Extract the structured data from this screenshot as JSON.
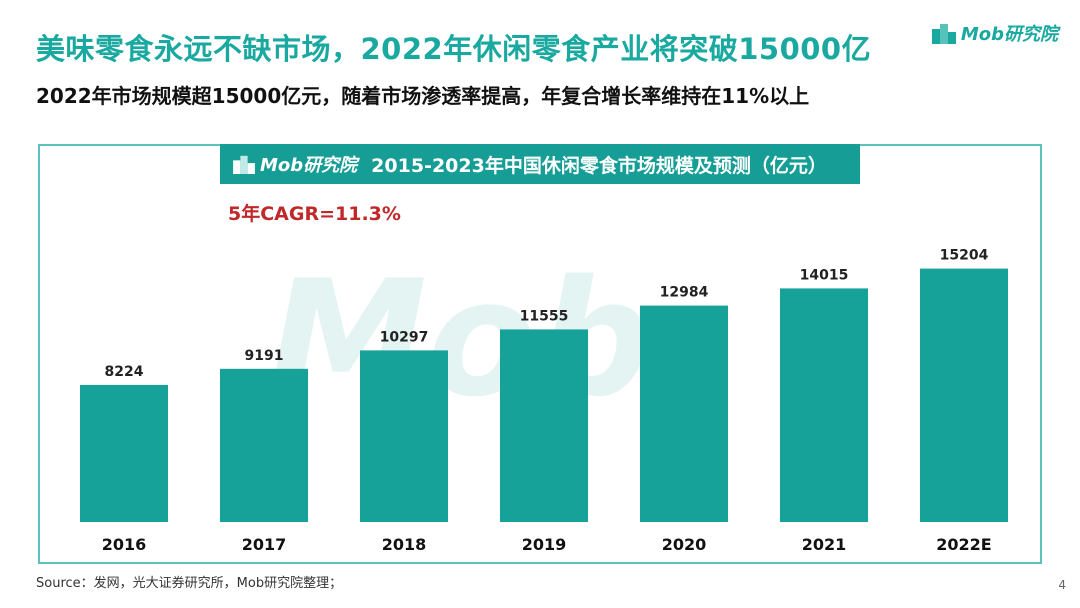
{
  "slide": {
    "headline": "美味零食永远不缺市场，2022年休闲零食产业将突破15000亿",
    "subhead": "2022年市场规模超15000亿元，随着市场渗透率提高，年复合增长率维持在11%以上",
    "brand": "Mob研究院",
    "source": "Source：发网，光大证券研究所，Mob研究院整理；",
    "page_number": "4"
  },
  "chart_data": {
    "type": "bar",
    "title": "2015-2023年中国休闲零食市场规模及预测（亿元）",
    "header_brand": "Mob研究院",
    "annotation": "5年CAGR=11.3%",
    "categories": [
      "2016",
      "2017",
      "2018",
      "2019",
      "2020",
      "2021",
      "2022E"
    ],
    "values": [
      8224,
      9191,
      10297,
      11555,
      12984,
      14015,
      15204
    ],
    "xlabel": "",
    "ylabel": "",
    "ylim": [
      0,
      18000
    ],
    "grid": false,
    "legend": "none",
    "bar_color": "#16a199"
  }
}
